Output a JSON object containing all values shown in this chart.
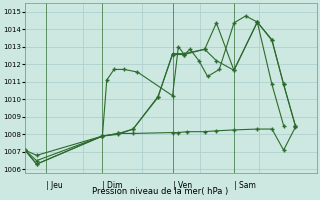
{
  "background_color": "#cce8e0",
  "grid_color": "#aacccc",
  "line_color": "#2d6a2d",
  "marker": "+",
  "title": "Pression niveau de la mer( hPa )",
  "ylabel_ticks": [
    1006,
    1007,
    1008,
    1009,
    1010,
    1011,
    1012,
    1013,
    1014,
    1015
  ],
  "ylim": [
    1005.8,
    1015.5
  ],
  "x_day_labels": [
    [
      "Jeu",
      0.072
    ],
    [
      "Dim",
      0.265
    ],
    [
      "Ven",
      0.505
    ],
    [
      "Sam",
      0.715
    ]
  ],
  "series": [
    {
      "x": [
        0.0,
        0.04,
        0.265,
        0.28,
        0.305,
        0.34,
        0.385,
        0.505,
        0.525,
        0.545,
        0.565,
        0.595,
        0.625,
        0.665,
        0.715,
        0.755,
        0.795,
        0.845,
        0.885
      ],
      "y": [
        1007.1,
        1006.8,
        1007.9,
        1011.1,
        1011.7,
        1011.7,
        1011.55,
        1010.2,
        1013.0,
        1012.55,
        1012.85,
        1012.2,
        1011.3,
        1011.7,
        1014.35,
        1014.75,
        1014.4,
        1010.85,
        1008.5
      ]
    },
    {
      "x": [
        0.0,
        0.04,
        0.265,
        0.32,
        0.37,
        0.505,
        0.525,
        0.555,
        0.615,
        0.655,
        0.715,
        0.795,
        0.845,
        0.885,
        0.925
      ],
      "y": [
        1007.1,
        1006.3,
        1007.9,
        1008.05,
        1008.05,
        1008.1,
        1008.1,
        1008.15,
        1008.15,
        1008.2,
        1008.25,
        1008.3,
        1008.3,
        1007.1,
        1008.4
      ]
    },
    {
      "x": [
        0.0,
        0.04,
        0.265,
        0.32,
        0.37,
        0.455,
        0.505,
        0.545,
        0.615,
        0.655,
        0.715,
        0.795,
        0.845,
        0.885,
        0.925
      ],
      "y": [
        1007.1,
        1006.3,
        1007.9,
        1008.0,
        1008.3,
        1010.15,
        1012.55,
        1012.55,
        1012.85,
        1014.35,
        1011.65,
        1014.4,
        1013.4,
        1010.85,
        1008.5
      ]
    },
    {
      "x": [
        0.0,
        0.04,
        0.265,
        0.32,
        0.37,
        0.455,
        0.505,
        0.545,
        0.615,
        0.655,
        0.715,
        0.795,
        0.845,
        0.885,
        0.925
      ],
      "y": [
        1007.1,
        1006.5,
        1007.9,
        1008.05,
        1008.3,
        1010.1,
        1012.6,
        1012.6,
        1012.85,
        1012.2,
        1011.65,
        1014.4,
        1013.35,
        1010.85,
        1008.5
      ]
    }
  ],
  "vlines_x": [
    0.072,
    0.265,
    0.505,
    0.715
  ],
  "figsize": [
    3.2,
    2.0
  ],
  "dpi": 100
}
